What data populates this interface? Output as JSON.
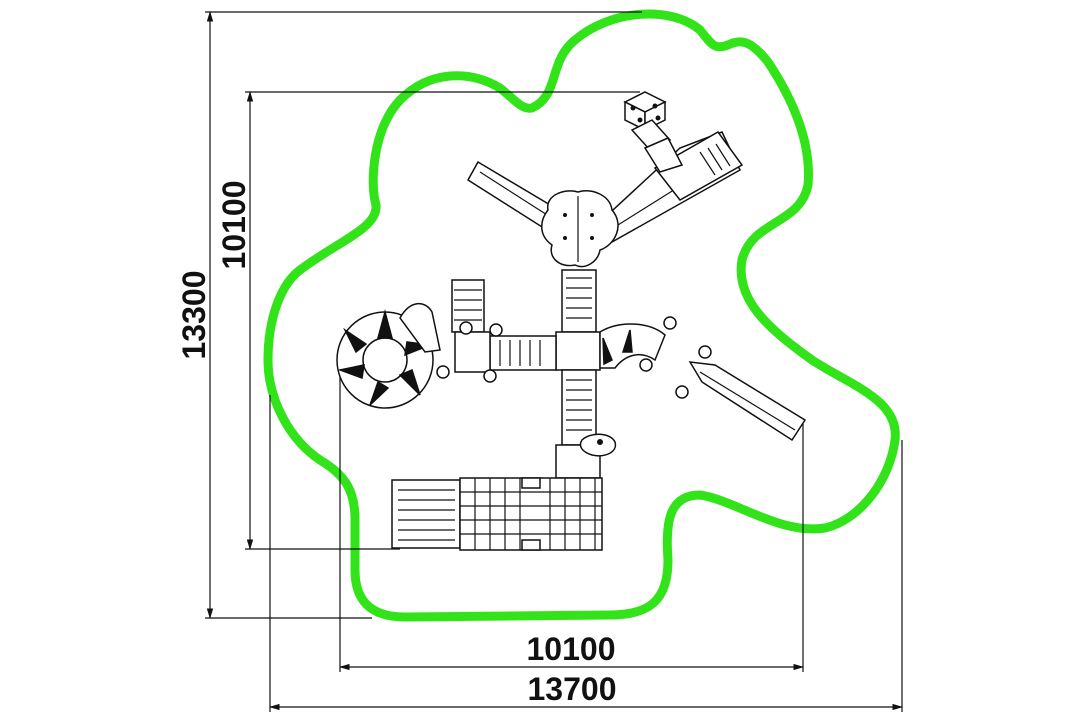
{
  "dimensions": {
    "overall_height": "13300",
    "inner_height": "10100",
    "inner_width": "10100",
    "overall_width": "13700"
  },
  "colors": {
    "safety_zone": "#33e31a",
    "lines": "#111111",
    "background": "#ffffff"
  }
}
